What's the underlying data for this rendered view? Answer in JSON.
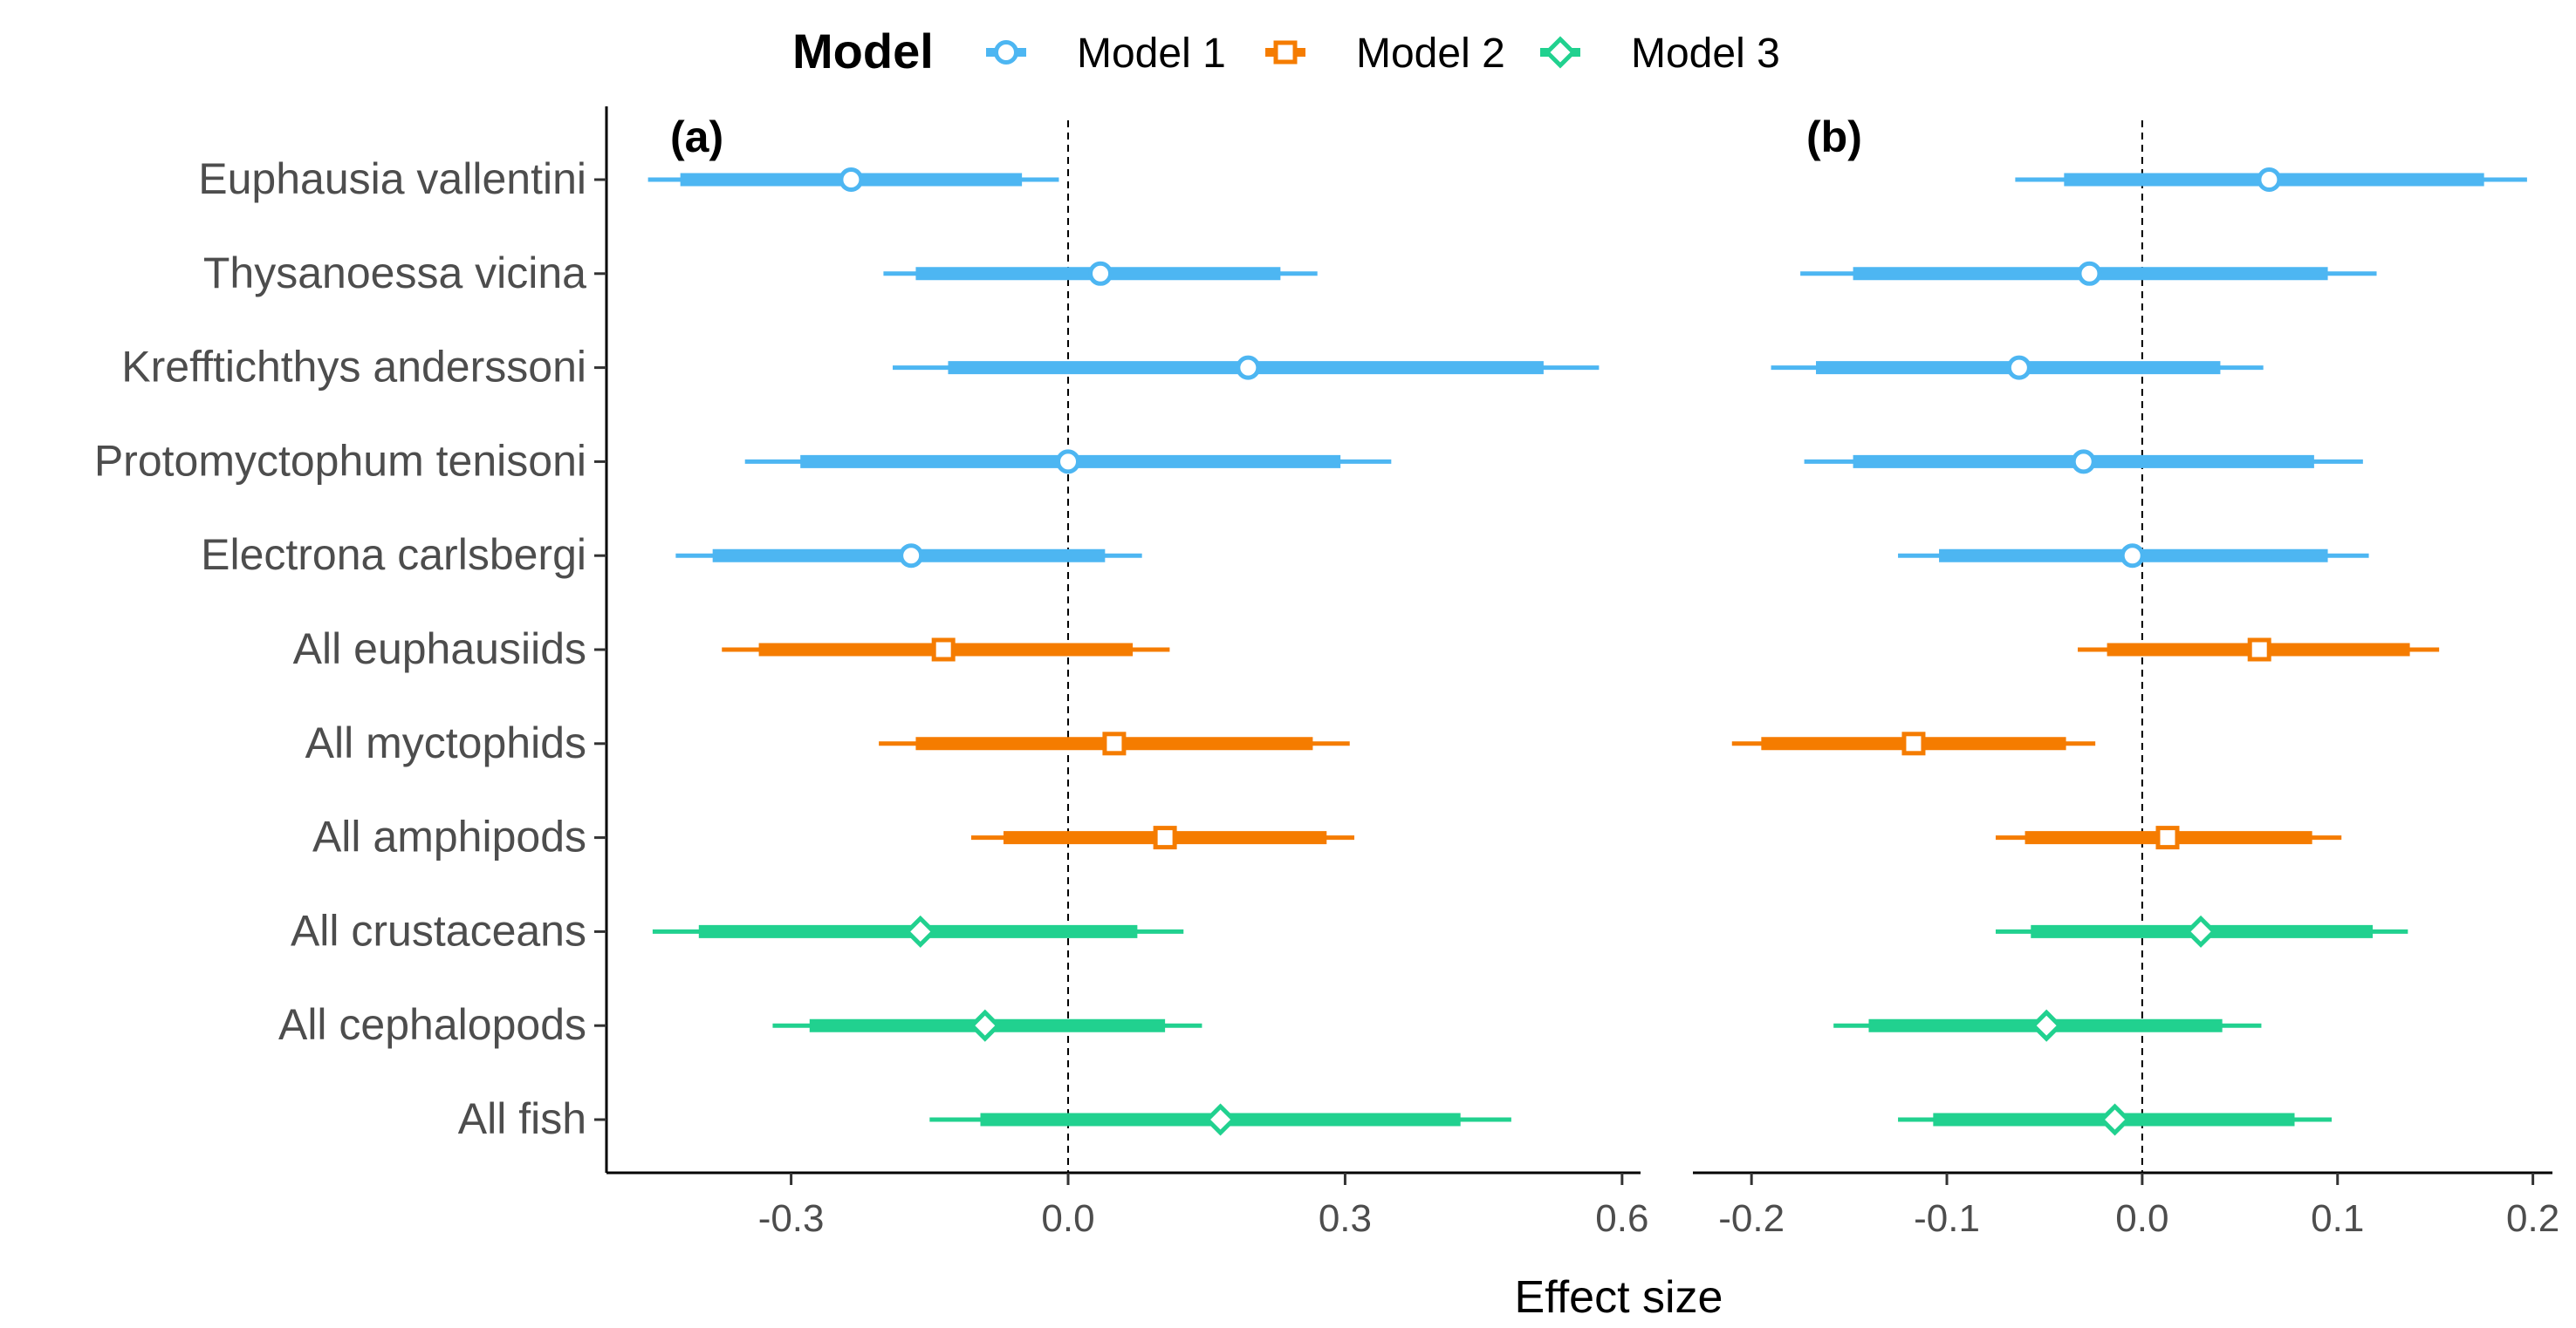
{
  "legend": {
    "title": "Model",
    "items": [
      {
        "label": "Model 1",
        "color": "#4db6f2",
        "shape": "circle"
      },
      {
        "label": "Model 2",
        "color": "#f57c00",
        "shape": "square"
      },
      {
        "label": "Model 3",
        "color": "#21d18f",
        "shape": "diamond"
      }
    ]
  },
  "chart_data": {
    "type": "forest",
    "xlabel": "Effect size",
    "categories": [
      "Euphausia vallentini",
      "Thysanoessa vicina",
      "Krefftichthys anderssoni",
      "Protomyctophum tenisoni",
      "Electrona carlsbergi",
      "All euphausiids",
      "All myctophids",
      "All amphipods",
      "All crustaceans",
      "All cephalopods",
      "All fish"
    ],
    "model_of_category": [
      "Model 1",
      "Model 1",
      "Model 1",
      "Model 1",
      "Model 1",
      "Model 2",
      "Model 2",
      "Model 2",
      "Model 3",
      "Model 3",
      "Model 3"
    ],
    "panels": [
      {
        "label": "(a)",
        "xlim": [
          -0.5,
          0.62
        ],
        "ticks": [
          -0.3,
          0.0,
          0.3,
          0.6
        ],
        "tick_labels": [
          "-0.3",
          "0.0",
          "0.3",
          "0.6"
        ],
        "reference_line": 0,
        "rows": [
          {
            "estimate": -0.235,
            "inner": [
              -0.42,
              -0.05
            ],
            "outer": [
              -0.455,
              -0.01
            ]
          },
          {
            "estimate": 0.035,
            "inner": [
              -0.165,
              0.23
            ],
            "outer": [
              -0.2,
              0.27
            ]
          },
          {
            "estimate": 0.195,
            "inner": [
              -0.13,
              0.515
            ],
            "outer": [
              -0.19,
              0.575
            ]
          },
          {
            "estimate": 0.0,
            "inner": [
              -0.29,
              0.295
            ],
            "outer": [
              -0.35,
              0.35
            ]
          },
          {
            "estimate": -0.17,
            "inner": [
              -0.385,
              0.04
            ],
            "outer": [
              -0.425,
              0.08
            ]
          },
          {
            "estimate": -0.135,
            "inner": [
              -0.335,
              0.07
            ],
            "outer": [
              -0.375,
              0.11
            ]
          },
          {
            "estimate": 0.05,
            "inner": [
              -0.165,
              0.265
            ],
            "outer": [
              -0.205,
              0.305
            ]
          },
          {
            "estimate": 0.105,
            "inner": [
              -0.07,
              0.28
            ],
            "outer": [
              -0.105,
              0.31
            ]
          },
          {
            "estimate": -0.16,
            "inner": [
              -0.4,
              0.075
            ],
            "outer": [
              -0.45,
              0.125
            ]
          },
          {
            "estimate": -0.09,
            "inner": [
              -0.28,
              0.105
            ],
            "outer": [
              -0.32,
              0.145
            ]
          },
          {
            "estimate": 0.165,
            "inner": [
              -0.095,
              0.425
            ],
            "outer": [
              -0.15,
              0.48
            ]
          }
        ]
      },
      {
        "label": "(b)",
        "xlim": [
          -0.23,
          0.21
        ],
        "ticks": [
          -0.2,
          -0.1,
          0.0,
          0.1,
          0.2
        ],
        "tick_labels": [
          "-0.2",
          "-0.1",
          "0.0",
          "0.1",
          "0.2"
        ],
        "reference_line": 0,
        "rows": [
          {
            "estimate": 0.065,
            "inner": [
              -0.04,
              0.175
            ],
            "outer": [
              -0.065,
              0.197
            ]
          },
          {
            "estimate": -0.027,
            "inner": [
              -0.148,
              0.095
            ],
            "outer": [
              -0.175,
              0.12
            ]
          },
          {
            "estimate": -0.063,
            "inner": [
              -0.167,
              0.04
            ],
            "outer": [
              -0.19,
              0.062
            ]
          },
          {
            "estimate": -0.03,
            "inner": [
              -0.148,
              0.088
            ],
            "outer": [
              -0.173,
              0.113
            ]
          },
          {
            "estimate": -0.005,
            "inner": [
              -0.104,
              0.095
            ],
            "outer": [
              -0.125,
              0.116
            ]
          },
          {
            "estimate": 0.06,
            "inner": [
              -0.018,
              0.137
            ],
            "outer": [
              -0.033,
              0.152
            ]
          },
          {
            "estimate": -0.117,
            "inner": [
              -0.195,
              -0.039
            ],
            "outer": [
              -0.21,
              -0.024
            ]
          },
          {
            "estimate": 0.013,
            "inner": [
              -0.06,
              0.087
            ],
            "outer": [
              -0.075,
              0.102
            ]
          },
          {
            "estimate": 0.03,
            "inner": [
              -0.057,
              0.118
            ],
            "outer": [
              -0.075,
              0.136
            ]
          },
          {
            "estimate": -0.049,
            "inner": [
              -0.14,
              0.041
            ],
            "outer": [
              -0.158,
              0.061
            ]
          },
          {
            "estimate": -0.014,
            "inner": [
              -0.107,
              0.078
            ],
            "outer": [
              -0.125,
              0.097
            ]
          }
        ]
      }
    ]
  }
}
